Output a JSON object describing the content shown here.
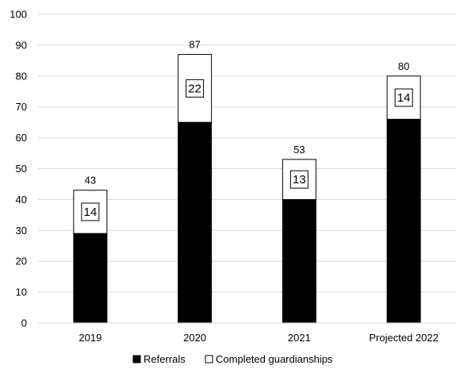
{
  "chart_data": {
    "type": "bar",
    "stacked": true,
    "categories": [
      "2019",
      "2020",
      "2021",
      "Projected 2022"
    ],
    "series": [
      {
        "name": "Referrals",
        "values": [
          29,
          65,
          40,
          66
        ],
        "color": "#000000"
      },
      {
        "name": "Completed guardianships",
        "values": [
          14,
          22,
          13,
          14
        ],
        "color": "#ffffff"
      }
    ],
    "totals": [
      43,
      87,
      53,
      80
    ],
    "segment_labels": [
      14,
      22,
      13,
      14
    ],
    "ylim": [
      0,
      100
    ],
    "yticks": [
      0,
      10,
      20,
      30,
      40,
      50,
      60,
      70,
      80,
      90,
      100
    ],
    "grid": true,
    "legend_position": "bottom",
    "title": "",
    "xlabel": "",
    "ylabel": ""
  }
}
